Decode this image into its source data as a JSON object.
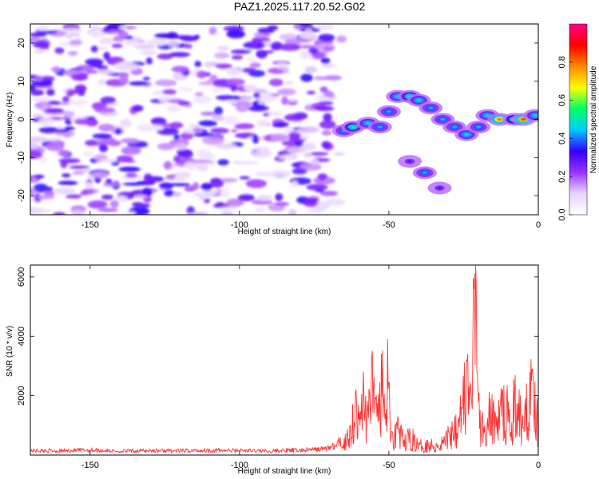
{
  "title": "PAZ1.2025.117.20.52.G02",
  "chart_data": [
    {
      "type": "heatmap",
      "xlabel": "Height of straight line (km)",
      "ylabel": "Frequency (Hz)",
      "xlim": [
        -170,
        0
      ],
      "ylim": [
        -25,
        25
      ],
      "xticks": [
        -150,
        -100,
        -50,
        0
      ],
      "xtick_labels": [
        "-150",
        "-100",
        "-50",
        "0"
      ],
      "yticks": [
        -20,
        -10,
        0,
        10,
        20
      ],
      "ytick_labels": [
        "-20",
        "-10",
        "0",
        "10",
        "20"
      ],
      "colorbar": {
        "label": "Normalized spectral amplitude",
        "range": [
          0.0,
          1.0
        ],
        "ticks": [
          0.0,
          0.2,
          0.4,
          0.6,
          0.8
        ],
        "tick_labels": [
          "0.0",
          "0.2",
          "0.4",
          "0.6",
          "0.8"
        ],
        "colormap": [
          "#ffffff",
          "#e8d4ff",
          "#9933ff",
          "#3300ff",
          "#00ccff",
          "#00ff66",
          "#ffff00",
          "#ff8800",
          "#ff0000",
          "#ff0088"
        ]
      },
      "noise_region": {
        "x": [
          -170,
          -70
        ],
        "y": [
          -25,
          25
        ],
        "amplitude": [
          0.05,
          0.35
        ]
      },
      "signal_track": [
        {
          "x": -65,
          "y": -3,
          "amplitude": 0.45
        },
        {
          "x": -62,
          "y": -2,
          "amplitude": 0.55
        },
        {
          "x": -57,
          "y": -1,
          "amplitude": 0.5
        },
        {
          "x": -53,
          "y": -2,
          "amplitude": 0.45
        },
        {
          "x": -50,
          "y": 2,
          "amplitude": 0.45
        },
        {
          "x": -47,
          "y": 6,
          "amplitude": 0.5
        },
        {
          "x": -43,
          "y": 6,
          "amplitude": 0.55
        },
        {
          "x": -40,
          "y": 5,
          "amplitude": 0.5
        },
        {
          "x": -36,
          "y": 3,
          "amplitude": 0.45
        },
        {
          "x": -32,
          "y": 0,
          "amplitude": 0.45
        },
        {
          "x": -28,
          "y": -2,
          "amplitude": 0.45
        },
        {
          "x": -24,
          "y": -4,
          "amplitude": 0.5
        },
        {
          "x": -20,
          "y": -2,
          "amplitude": 0.45
        },
        {
          "x": -17,
          "y": 1,
          "amplitude": 0.5
        },
        {
          "x": -13,
          "y": 0,
          "amplitude": 0.8
        },
        {
          "x": -8,
          "y": 0,
          "amplitude": 0.6
        },
        {
          "x": -5,
          "y": 0,
          "amplitude": 0.85
        },
        {
          "x": -1,
          "y": 1,
          "amplitude": 0.5
        }
      ],
      "secondary_track": [
        {
          "x": -43,
          "y": -11,
          "amplitude": 0.3
        },
        {
          "x": -38,
          "y": -14,
          "amplitude": 0.45
        },
        {
          "x": -33,
          "y": -18,
          "amplitude": 0.3
        }
      ]
    },
    {
      "type": "line",
      "xlabel": "Height of straight line (km)",
      "ylabel": "SNR (10 * v/v)",
      "xlim": [
        -170,
        0
      ],
      "ylim": [
        0,
        6400
      ],
      "xticks": [
        -150,
        -100,
        -50,
        0
      ],
      "xtick_labels": [
        "-150",
        "-100",
        "-50",
        "0"
      ],
      "yticks": [
        2000,
        4000,
        6000
      ],
      "ytick_labels": [
        "2000",
        "4000",
        "6000"
      ],
      "color": "#ff3333",
      "series": [
        {
          "x": [
            -170,
            -160,
            -150,
            -140,
            -130,
            -120,
            -110,
            -100,
            -90,
            -80,
            -72,
            -68,
            -65,
            -63,
            -61,
            -60,
            -58.5,
            -57,
            -55.5,
            -54,
            -52.5,
            -51,
            -50.5,
            -49,
            -47,
            -45,
            -43,
            -40,
            -37,
            -34,
            -31,
            -28,
            -26,
            -24,
            -22.5,
            -21.5,
            -21,
            -20.5,
            -19.5,
            -18,
            -16,
            -14,
            -12,
            -10,
            -8,
            -6,
            -4,
            -2,
            0
          ],
          "y": [
            150,
            140,
            170,
            130,
            150,
            140,
            160,
            150,
            140,
            160,
            200,
            300,
            550,
            1000,
            2200,
            1200,
            2800,
            1500,
            3500,
            1300,
            3400,
            1000,
            3900,
            800,
            1300,
            500,
            900,
            400,
            500,
            400,
            700,
            1300,
            2000,
            3200,
            2100,
            5600,
            6400,
            2800,
            1500,
            1000,
            1900,
            1300,
            2200,
            1800,
            2200,
            2000,
            2400,
            2900,
            1500
          ]
        }
      ]
    }
  ]
}
